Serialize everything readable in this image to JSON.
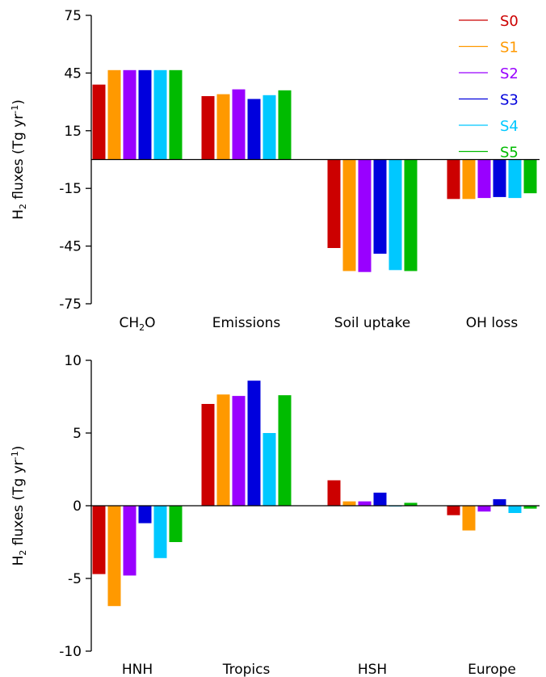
{
  "colors": {
    "S0": "#cc0000",
    "S1": "#ff9900",
    "S2": "#9900ff",
    "S3": "#0000dd",
    "S4": "#00c8ff",
    "S5": "#00bb00",
    "axis": "#000000"
  },
  "chart_data": [
    {
      "type": "bar",
      "ylabel_main": "H",
      "ylabel_sub": "2",
      "ylabel_rest": " fluxes (Tg yr",
      "ylabel_sup": "-1",
      "ylabel_end": ")",
      "ylim": [
        -75,
        75
      ],
      "yticks": [
        {
          "value": 75,
          "label": "75"
        },
        {
          "value": 45,
          "label": "45"
        },
        {
          "value": 15,
          "label": "15"
        },
        {
          "value": -15,
          "label": "-15"
        },
        {
          "value": -45,
          "label": "-45"
        },
        {
          "value": -75,
          "label": "-75"
        }
      ],
      "categories": [
        {
          "main": "CH",
          "sub": "2",
          "rest": "O"
        },
        {
          "main": "Emissions",
          "sub": "",
          "rest": ""
        },
        {
          "main": "Soil uptake",
          "sub": "",
          "rest": ""
        },
        {
          "main": "OH loss",
          "sub": "",
          "rest": ""
        }
      ],
      "legend": {
        "placement": "top-right"
      },
      "series": [
        {
          "name": "S0",
          "values": [
            39,
            33,
            -46,
            -20.5
          ]
        },
        {
          "name": "S1",
          "values": [
            46.5,
            34,
            -58,
            -20.5
          ]
        },
        {
          "name": "S2",
          "values": [
            46.5,
            36.5,
            -58.5,
            -20
          ]
        },
        {
          "name": "S3",
          "values": [
            46.5,
            31.5,
            -49,
            -19.5
          ]
        },
        {
          "name": "S4",
          "values": [
            46.5,
            33.5,
            -57.5,
            -20
          ]
        },
        {
          "name": "S5",
          "values": [
            46.5,
            36,
            -58,
            -17.5
          ]
        }
      ]
    },
    {
      "type": "bar",
      "ylabel_main": "H",
      "ylabel_sub": "2",
      "ylabel_rest": " fluxes (Tg yr",
      "ylabel_sup": "-1",
      "ylabel_end": ")",
      "ylim": [
        -10,
        10
      ],
      "yticks": [
        {
          "value": 10,
          "label": "10"
        },
        {
          "value": 5,
          "label": "5"
        },
        {
          "value": 0,
          "label": "0"
        },
        {
          "value": -5,
          "label": "-5"
        },
        {
          "value": -10,
          "label": "-10"
        }
      ],
      "categories": [
        {
          "main": "HNH",
          "sub": "",
          "rest": ""
        },
        {
          "main": "Tropics",
          "sub": "",
          "rest": ""
        },
        {
          "main": "HSH",
          "sub": "",
          "rest": ""
        },
        {
          "main": "Europe",
          "sub": "",
          "rest": ""
        }
      ],
      "series": [
        {
          "name": "S0",
          "values": [
            -4.7,
            7.0,
            1.75,
            -0.65
          ]
        },
        {
          "name": "S1",
          "values": [
            -6.9,
            7.65,
            0.3,
            -1.7
          ]
        },
        {
          "name": "S2",
          "values": [
            -4.8,
            7.55,
            0.3,
            -0.4
          ]
        },
        {
          "name": "S3",
          "values": [
            -1.2,
            8.6,
            0.9,
            0.45
          ]
        },
        {
          "name": "S4",
          "values": [
            -3.6,
            5.0,
            -0.05,
            -0.5
          ]
        },
        {
          "name": "S5",
          "values": [
            -2.5,
            7.6,
            0.2,
            -0.2
          ]
        }
      ]
    }
  ]
}
